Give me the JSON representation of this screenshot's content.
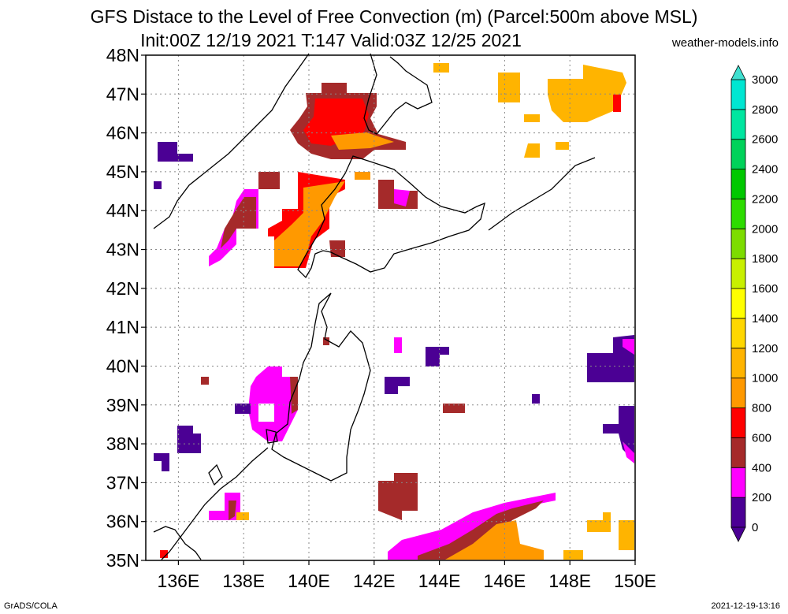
{
  "title_line1": "GFS Distace to the Level of Free Convection (m) (Parcel:500m above MSL)",
  "title_line2": "Init:00Z 12/19 2021 T:147 Valid:03Z 12/25 2021",
  "credit": "weather-models.info",
  "footer_left": "GrADS/COLA",
  "footer_right": "2021-12-19-13:16",
  "map": {
    "lon_range": [
      135,
      150
    ],
    "lat_range": [
      35,
      48
    ],
    "lat_labels": [
      "48N",
      "47N",
      "46N",
      "45N",
      "44N",
      "43N",
      "42N",
      "41N",
      "40N",
      "39N",
      "38N",
      "37N",
      "36N",
      "35N"
    ],
    "lon_labels": [
      "136E",
      "138E",
      "140E",
      "142E",
      "144E",
      "146E",
      "148E",
      "150E"
    ],
    "grid": "dotted"
  },
  "colorbar": {
    "levels": [
      "0",
      "200",
      "400",
      "600",
      "800",
      "1000",
      "1200",
      "1400",
      "1600",
      "1800",
      "2000",
      "2200",
      "2400",
      "2600",
      "2800",
      "3000"
    ],
    "colors": [
      "#4b0094",
      "#ff00ff",
      "#a52a2a",
      "#ff0000",
      "#ff9900",
      "#ffb400",
      "#ffd700",
      "#ffff00",
      "#c8f000",
      "#7ddc00",
      "#2ddc00",
      "#00c800",
      "#00d25a",
      "#00e6a0",
      "#00e6d2",
      "#00f0f0"
    ],
    "min_color": "#4b0094",
    "max_color": "#40e0d0"
  }
}
